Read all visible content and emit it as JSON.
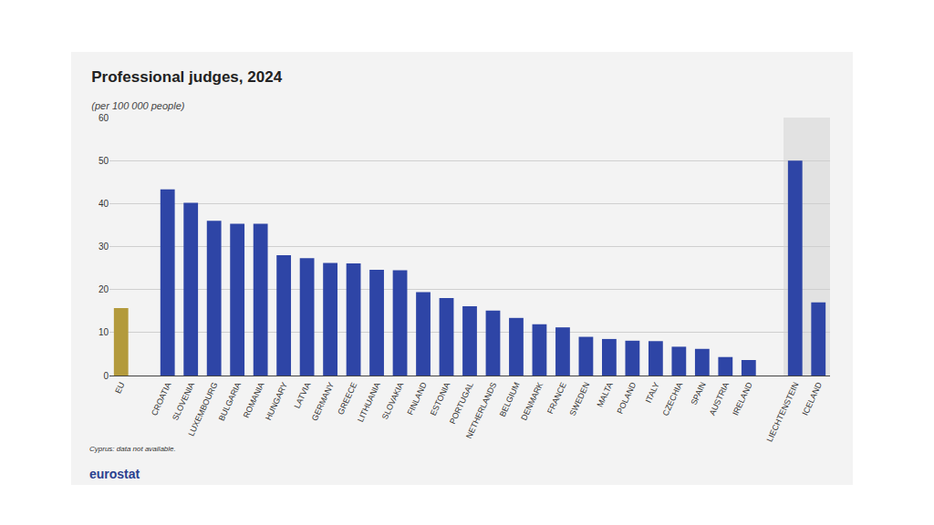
{
  "chart_data": {
    "type": "bar",
    "title": "Professional judges, 2024",
    "subtitle": "(per 100 000 people)",
    "footnote": "Cyprus: data not available.",
    "source": "eurostat",
    "categories": [
      "EU",
      null,
      "CROATIA",
      "SLOVENIA",
      "LUXEMBOURG",
      "BULGARIA",
      "ROMANIA",
      "HUNGARY",
      "LATVIA",
      "GERMANY",
      "GREECE",
      "LITHUANIA",
      "SLOVAKIA",
      "FINLAND",
      "ESTONIA",
      "PORTUGAL",
      "NETHERLANDS",
      "BELGIUM",
      "DENMARK",
      "FRANCE",
      "SWEDEN",
      "MALTA",
      "POLAND",
      "ITALY",
      "CZECHIA",
      "SPAIN",
      "AUSTRIA",
      "IRELAND",
      null,
      "LIECHTENSTEIN",
      "ICELAND"
    ],
    "values": [
      15.7,
      null,
      43.3,
      40.2,
      36.0,
      35.3,
      35.3,
      28.0,
      27.3,
      26.2,
      26.1,
      24.6,
      24.5,
      19.4,
      18.0,
      16.1,
      15.1,
      13.4,
      11.9,
      11.2,
      9.0,
      8.5,
      8.1,
      8.0,
      6.7,
      6.2,
      4.3,
      3.6,
      null,
      50.0,
      17.0
    ],
    "colors": [
      "#b39a3c",
      null,
      "#2e45a6",
      "#2e45a6",
      "#2e45a6",
      "#2e45a6",
      "#2e45a6",
      "#2e45a6",
      "#2e45a6",
      "#2e45a6",
      "#2e45a6",
      "#2e45a6",
      "#2e45a6",
      "#2e45a6",
      "#2e45a6",
      "#2e45a6",
      "#2e45a6",
      "#2e45a6",
      "#2e45a6",
      "#2e45a6",
      "#2e45a6",
      "#2e45a6",
      "#2e45a6",
      "#2e45a6",
      "#2e45a6",
      "#2e45a6",
      "#2e45a6",
      "#2e45a6",
      null,
      "#2e45a6",
      "#2e45a6"
    ],
    "ylim": [
      0,
      60
    ],
    "yticks": [
      0,
      10,
      20,
      30,
      40,
      50,
      60
    ],
    "grid": true
  }
}
